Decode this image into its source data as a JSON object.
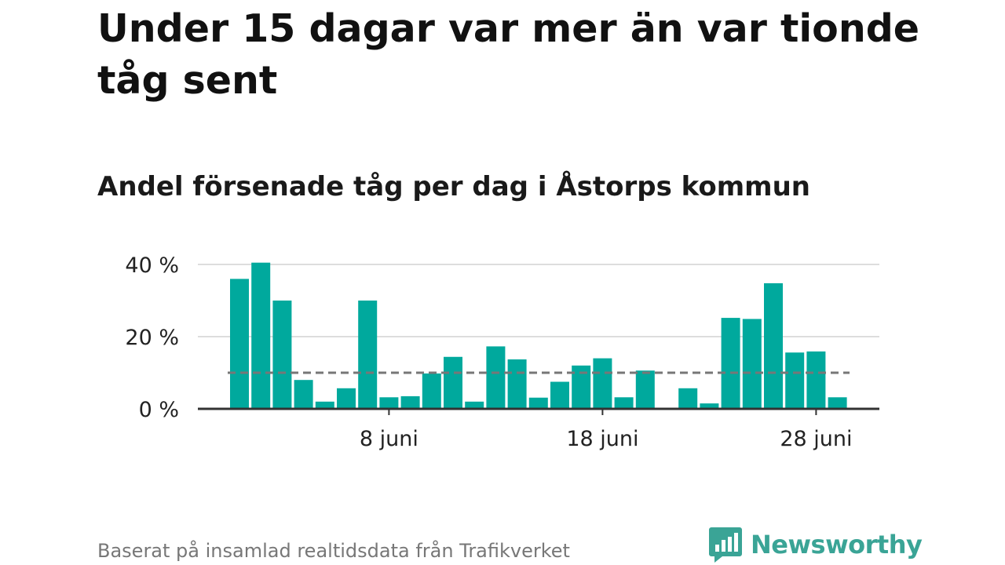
{
  "title": "Under 15 dagar var mer än var tionde tåg sent",
  "subtitle": "Andel försenade tåg per dag i Åstorps kommun",
  "footer": {
    "source": "Baserat på insamlad realtidsdata från Trafikverket"
  },
  "brand": {
    "name": "Newsworthy",
    "color": "#3aa496",
    "icon": "newsworthy-logo-icon"
  },
  "colors": {
    "bar": "#00a99d",
    "reference_line": "#777777",
    "grid": "#dddddd",
    "axis": "#333333"
  },
  "chart_data": {
    "type": "bar",
    "x": [
      1,
      2,
      3,
      4,
      5,
      6,
      7,
      8,
      9,
      10,
      11,
      12,
      13,
      14,
      15,
      16,
      17,
      18,
      19,
      20,
      21,
      22,
      23,
      24,
      25,
      26,
      27,
      28,
      29
    ],
    "values": [
      36,
      40.5,
      30,
      8,
      2,
      5.7,
      30,
      3.2,
      3.5,
      9.8,
      14.4,
      2,
      17.3,
      13.7,
      3.1,
      7.5,
      12,
      14,
      3.2,
      10.6,
      0,
      5.7,
      1.5,
      25.2,
      24.9,
      34.8,
      15.6,
      15.9,
      3.2
    ],
    "ylim": [
      0,
      40
    ],
    "yticks": [
      0,
      20,
      40
    ],
    "ytick_labels": [
      "0 %",
      "20 %",
      "40 %"
    ],
    "xticks": [
      8,
      18,
      28
    ],
    "xtick_labels": [
      "8 juni",
      "18 juni",
      "28 juni"
    ],
    "reference_line": 10,
    "grid": "horizontal"
  }
}
